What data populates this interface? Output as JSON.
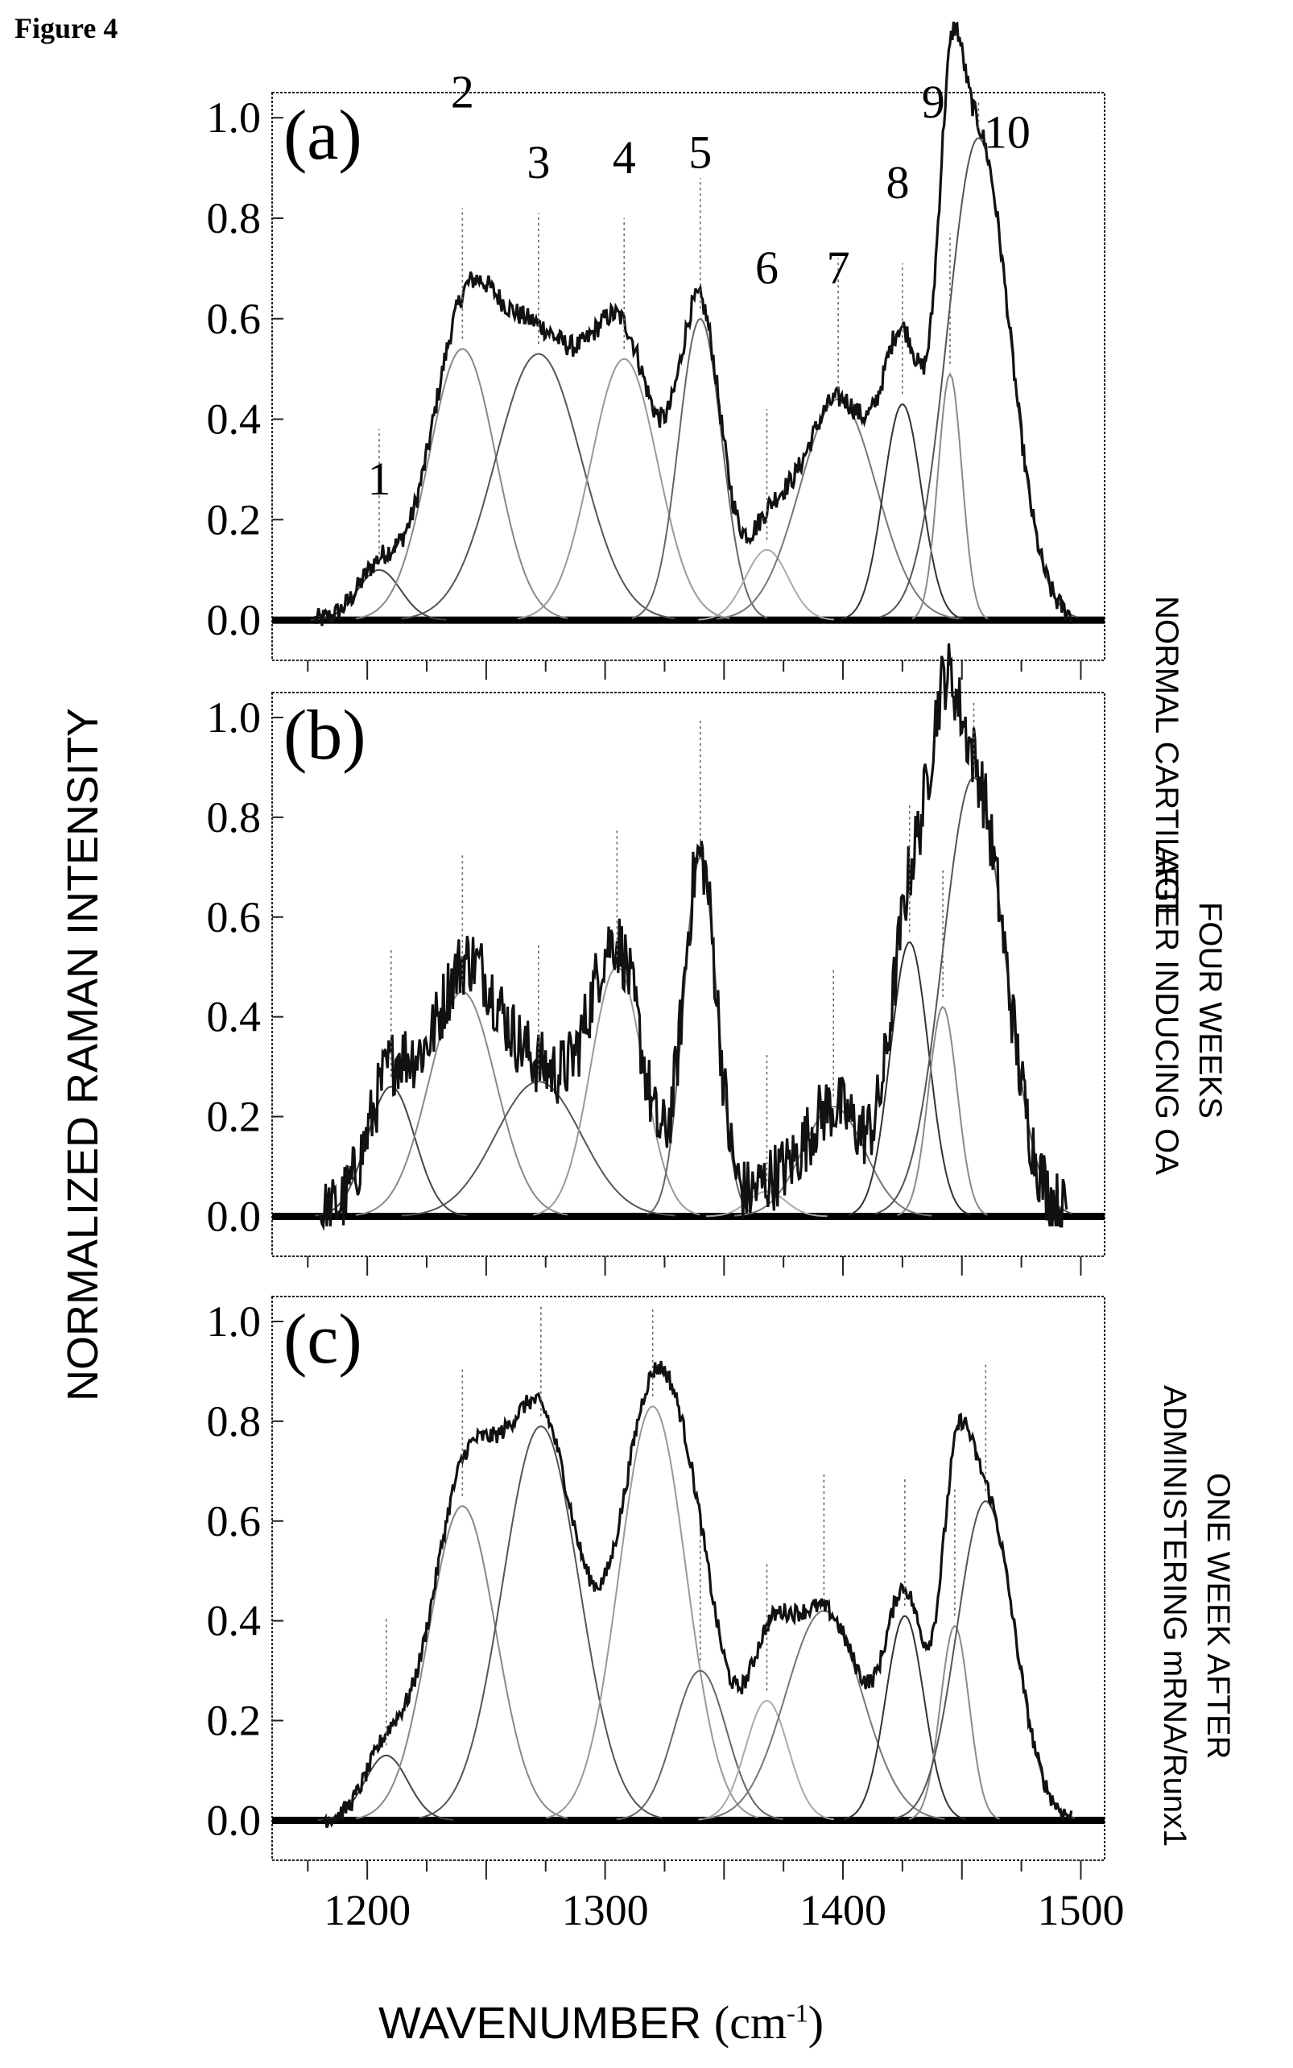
{
  "figure_title": "Figure 4",
  "y_axis_label": "NORMALIZED RAMAN INTENSITY",
  "x_axis_label": "WAVENUMBER",
  "x_axis_unit_base": "(cm",
  "x_axis_unit_exp": "-1",
  "x_axis_unit_close": ")",
  "panel_conditions": {
    "a": [
      "NORMAL CARTILAGE"
    ],
    "b": [
      "FOUR WEEKS",
      "AFTER INDUCING OA"
    ],
    "c": [
      "ONE WEEK AFTER",
      "ADMINISTERING mRNA/Runx1"
    ]
  },
  "chart_data": [
    {
      "type": "line",
      "panel_label": "(a)",
      "x_tick_labels": [],
      "y_tick_labels": [
        "0.0",
        "0.2",
        "0.4",
        "0.6",
        "0.8",
        "1.0"
      ],
      "xlim": [
        1160,
        1510
      ],
      "ylim": [
        -0.08,
        1.05
      ],
      "peak_numbers": [
        "1",
        "2",
        "3",
        "4",
        "5",
        "6",
        "7",
        "8",
        "9",
        "10"
      ],
      "peaks": [
        {
          "center": 1205,
          "height": 0.1,
          "width": 9
        },
        {
          "center": 1240,
          "height": 0.54,
          "width": 14
        },
        {
          "center": 1272,
          "height": 0.53,
          "width": 18
        },
        {
          "center": 1308,
          "height": 0.52,
          "width": 14
        },
        {
          "center": 1340,
          "height": 0.6,
          "width": 9
        },
        {
          "center": 1368,
          "height": 0.14,
          "width": 9
        },
        {
          "center": 1398,
          "height": 0.44,
          "width": 16
        },
        {
          "center": 1425,
          "height": 0.43,
          "width": 8
        },
        {
          "center": 1445,
          "height": 0.49,
          "width": 5
        },
        {
          "center": 1457,
          "height": 0.96,
          "width": 13
        }
      ]
    },
    {
      "type": "line",
      "panel_label": "(b)",
      "x_tick_labels": [],
      "y_tick_labels": [
        "0.0",
        "0.2",
        "0.4",
        "0.6",
        "0.8",
        "1.0"
      ],
      "xlim": [
        1160,
        1510
      ],
      "ylim": [
        -0.08,
        1.05
      ],
      "peaks": [
        {
          "center": 1210,
          "height": 0.26,
          "width": 10
        },
        {
          "center": 1240,
          "height": 0.45,
          "width": 14
        },
        {
          "center": 1272,
          "height": 0.27,
          "width": 18
        },
        {
          "center": 1305,
          "height": 0.5,
          "width": 11
        },
        {
          "center": 1340,
          "height": 0.72,
          "width": 7
        },
        {
          "center": 1368,
          "height": 0.05,
          "width": 8
        },
        {
          "center": 1396,
          "height": 0.22,
          "width": 13
        },
        {
          "center": 1428,
          "height": 0.55,
          "width": 8
        },
        {
          "center": 1442,
          "height": 0.42,
          "width": 6
        },
        {
          "center": 1455,
          "height": 0.88,
          "width": 13
        }
      ]
    },
    {
      "type": "line",
      "panel_label": "(c)",
      "x_tick_labels": [
        "1200",
        "1300",
        "1400",
        "1500"
      ],
      "y_tick_labels": [
        "0.0",
        "0.2",
        "0.4",
        "0.6",
        "0.8",
        "1.0"
      ],
      "xlim": [
        1160,
        1510
      ],
      "ylim": [
        -0.08,
        1.05
      ],
      "peaks": [
        {
          "center": 1208,
          "height": 0.13,
          "width": 9
        },
        {
          "center": 1240,
          "height": 0.63,
          "width": 14
        },
        {
          "center": 1273,
          "height": 0.79,
          "width": 16
        },
        {
          "center": 1320,
          "height": 0.83,
          "width": 14
        },
        {
          "center": 1340,
          "height": 0.3,
          "width": 11
        },
        {
          "center": 1368,
          "height": 0.24,
          "width": 9
        },
        {
          "center": 1392,
          "height": 0.42,
          "width": 16
        },
        {
          "center": 1426,
          "height": 0.41,
          "width": 8
        },
        {
          "center": 1447,
          "height": 0.39,
          "width": 6
        },
        {
          "center": 1460,
          "height": 0.64,
          "width": 12
        }
      ]
    }
  ]
}
